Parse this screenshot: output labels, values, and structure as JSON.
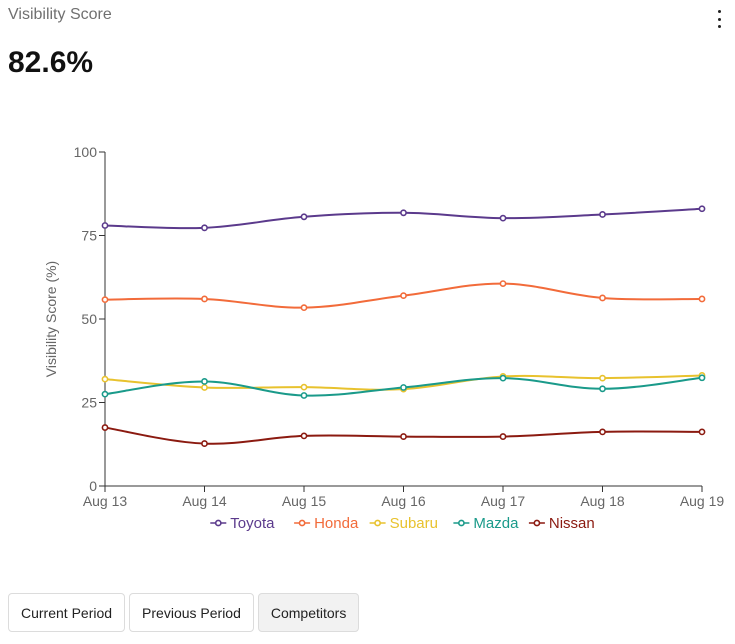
{
  "card": {
    "title": "Visibility Score",
    "value": "82.6%"
  },
  "tabs": [
    {
      "label": "Current Period",
      "active": false
    },
    {
      "label": "Previous Period",
      "active": false
    },
    {
      "label": "Competitors",
      "active": true
    }
  ],
  "chart_data": {
    "type": "line",
    "title": "",
    "xlabel": "",
    "ylabel": "Visibility Score (%)",
    "ylim": [
      0,
      100
    ],
    "yticks": [
      0,
      25,
      50,
      75,
      100
    ],
    "categories": [
      "Aug 13",
      "Aug 14",
      "Aug 15",
      "Aug 16",
      "Aug 17",
      "Aug 18",
      "Aug 19"
    ],
    "grid": false,
    "legend_position": "bottom",
    "series": [
      {
        "name": "Toyota",
        "color": "#5b3a8c",
        "values": [
          78.0,
          77.3,
          80.6,
          81.8,
          80.2,
          81.3,
          83.0
        ]
      },
      {
        "name": "Honda",
        "color": "#f26b3a",
        "values": [
          55.8,
          56.0,
          53.4,
          57.0,
          60.6,
          56.3,
          56.0
        ]
      },
      {
        "name": "Subaru",
        "color": "#e8c22e",
        "values": [
          32.0,
          29.5,
          29.6,
          29.0,
          32.8,
          32.3,
          33.1
        ]
      },
      {
        "name": "Mazda",
        "color": "#1a9a8a",
        "values": [
          27.5,
          31.3,
          27.1,
          29.5,
          32.3,
          29.1,
          32.4
        ]
      },
      {
        "name": "Nissan",
        "color": "#8b1a10",
        "values": [
          17.5,
          12.7,
          15.0,
          14.8,
          14.8,
          16.2,
          16.2
        ]
      }
    ]
  }
}
